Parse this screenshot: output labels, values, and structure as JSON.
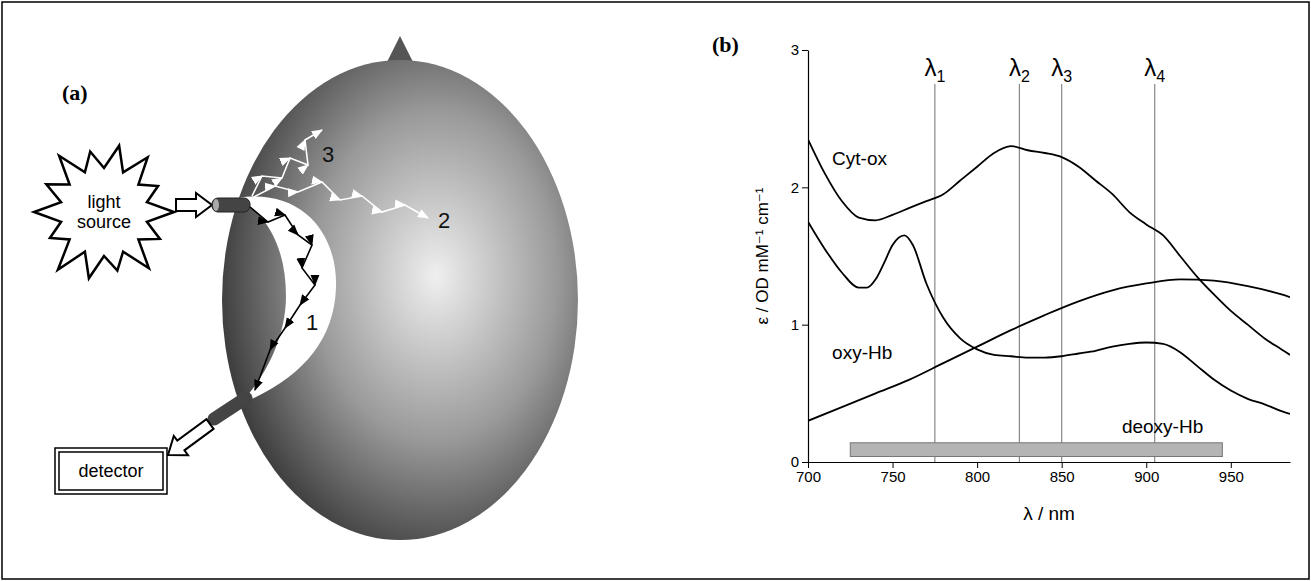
{
  "panel_labels": [
    "(a)",
    "(b)"
  ],
  "diagram": {
    "source": "light source",
    "detector": "detector",
    "paths": [
      "1",
      "2",
      "3"
    ]
  },
  "chart_data": {
    "type": "line",
    "xlabel": "λ / nm",
    "ylabel": "ε / OD mM⁻¹ cm⁻¹",
    "xlim": [
      700,
      985
    ],
    "ylim": [
      0,
      3
    ],
    "xticks": [
      700,
      750,
      800,
      850,
      900,
      950
    ],
    "yticks": [
      0,
      1,
      2,
      3
    ],
    "color": "#000000",
    "series": [
      {
        "name": "Cyt-ox",
        "x": [
          700,
          710,
          720,
          730,
          740,
          750,
          760,
          770,
          780,
          790,
          800,
          810,
          820,
          830,
          840,
          850,
          860,
          870,
          880,
          890,
          900,
          910,
          920,
          930,
          940,
          950,
          960,
          970,
          980,
          985
        ],
        "values": [
          2.35,
          2.1,
          1.9,
          1.78,
          1.76,
          1.8,
          1.85,
          1.9,
          1.95,
          2.05,
          2.15,
          2.25,
          2.3,
          2.27,
          2.25,
          2.22,
          2.15,
          2.05,
          1.95,
          1.82,
          1.73,
          1.65,
          1.5,
          1.35,
          1.22,
          1.1,
          1.0,
          0.9,
          0.82,
          0.78
        ]
      },
      {
        "name": "oxy-Hb",
        "x": [
          700,
          720,
          740,
          760,
          780,
          800,
          820,
          840,
          860,
          880,
          900,
          920,
          940,
          960,
          980,
          985
        ],
        "values": [
          0.3,
          0.4,
          0.5,
          0.6,
          0.72,
          0.84,
          0.96,
          1.07,
          1.17,
          1.25,
          1.3,
          1.33,
          1.32,
          1.28,
          1.22,
          1.2
        ]
      },
      {
        "name": "deoxy-Hb",
        "x": [
          700,
          710,
          720,
          730,
          735,
          740,
          745,
          750,
          757,
          762,
          770,
          780,
          790,
          800,
          810,
          820,
          830,
          840,
          850,
          860,
          870,
          880,
          890,
          900,
          910,
          920,
          930,
          940,
          950,
          960,
          970,
          980,
          985
        ],
        "values": [
          1.75,
          1.55,
          1.38,
          1.27,
          1.27,
          1.33,
          1.45,
          1.58,
          1.65,
          1.58,
          1.3,
          1.05,
          0.9,
          0.82,
          0.78,
          0.77,
          0.76,
          0.76,
          0.77,
          0.79,
          0.81,
          0.84,
          0.86,
          0.87,
          0.86,
          0.8,
          0.7,
          0.6,
          0.52,
          0.46,
          0.42,
          0.37,
          0.35
        ]
      }
    ],
    "annotations": [
      {
        "label": "λ1",
        "x": 775
      },
      {
        "label": "λ2",
        "x": 825
      },
      {
        "label": "λ3",
        "x": 850
      },
      {
        "label": "λ4",
        "x": 905
      }
    ],
    "range": {
      "x": [
        725,
        945
      ],
      "y": [
        0.04,
        0.14
      ],
      "color": "#b4b4b4"
    }
  }
}
